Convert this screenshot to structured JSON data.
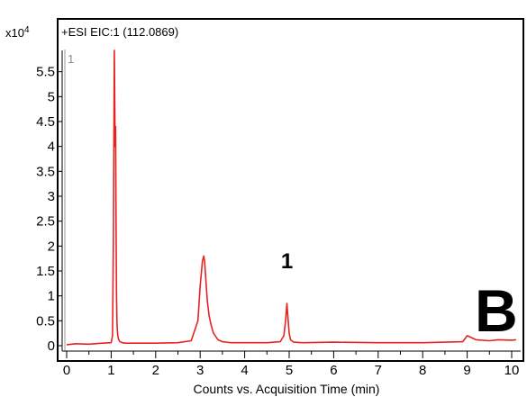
{
  "chart_data": {
    "type": "line",
    "header": "+ESI  EIC:1  (112.0869)",
    "trace_number": "1",
    "y_multiplier_base": "x10",
    "y_multiplier_exp": "4",
    "xlabel": "Counts vs. Acquisition Time (min)",
    "xlim": [
      -0.1,
      10.1
    ],
    "ylim": [
      -0.1,
      6.0
    ],
    "x_ticks": [
      0,
      1,
      2,
      3,
      4,
      5,
      6,
      7,
      8,
      9,
      10
    ],
    "x_tick_labels": [
      "0",
      "1",
      "2",
      "3",
      "4",
      "5",
      "6",
      "7",
      "8",
      "9",
      "10"
    ],
    "y_ticks": [
      0,
      0.5,
      1,
      1.5,
      2,
      2.5,
      3,
      3.5,
      4,
      4.5,
      5,
      5.5
    ],
    "y_tick_labels": [
      "0",
      "0.5",
      "1",
      "1.5",
      "2",
      "2.5",
      "3",
      "3.5",
      "4",
      "4.5",
      "5",
      "5.5"
    ],
    "series_color": "#e8231f",
    "series": [
      {
        "x": [
          0.0,
          0.2,
          0.5,
          0.8,
          1.0,
          1.03,
          1.05,
          1.07,
          1.09,
          1.1,
          1.11,
          1.12,
          1.13,
          1.14,
          1.15,
          1.16,
          1.18,
          1.2,
          1.25,
          1.3,
          1.5,
          2.0,
          2.5,
          2.8,
          2.95,
          3.0,
          3.05,
          3.08,
          3.1,
          3.13,
          3.16,
          3.2,
          3.25,
          3.3,
          3.4,
          3.5,
          3.7,
          4.0,
          4.5,
          4.8,
          4.88,
          4.92,
          4.95,
          4.97,
          5.0,
          5.03,
          5.1,
          5.3,
          6.0,
          7.0,
          8.0,
          8.9,
          9.0,
          9.05,
          9.2,
          9.5,
          9.7,
          10.0,
          10.1
        ],
        "y": [
          0.02,
          0.04,
          0.03,
          0.05,
          0.06,
          0.2,
          2.2,
          5.93,
          4.0,
          4.4,
          2.6,
          1.1,
          0.5,
          0.3,
          0.2,
          0.15,
          0.1,
          0.08,
          0.06,
          0.05,
          0.05,
          0.05,
          0.06,
          0.1,
          0.5,
          1.2,
          1.7,
          1.8,
          1.7,
          1.3,
          0.9,
          0.6,
          0.4,
          0.25,
          0.12,
          0.08,
          0.06,
          0.06,
          0.06,
          0.08,
          0.2,
          0.5,
          0.85,
          0.6,
          0.25,
          0.12,
          0.07,
          0.06,
          0.07,
          0.06,
          0.06,
          0.08,
          0.2,
          0.18,
          0.12,
          0.1,
          0.12,
          0.11,
          0.12
        ]
      }
    ],
    "annotations": [
      {
        "text": "1",
        "x": 4.95,
        "y": 1.55
      }
    ],
    "panel_label": "B",
    "grid": false
  }
}
